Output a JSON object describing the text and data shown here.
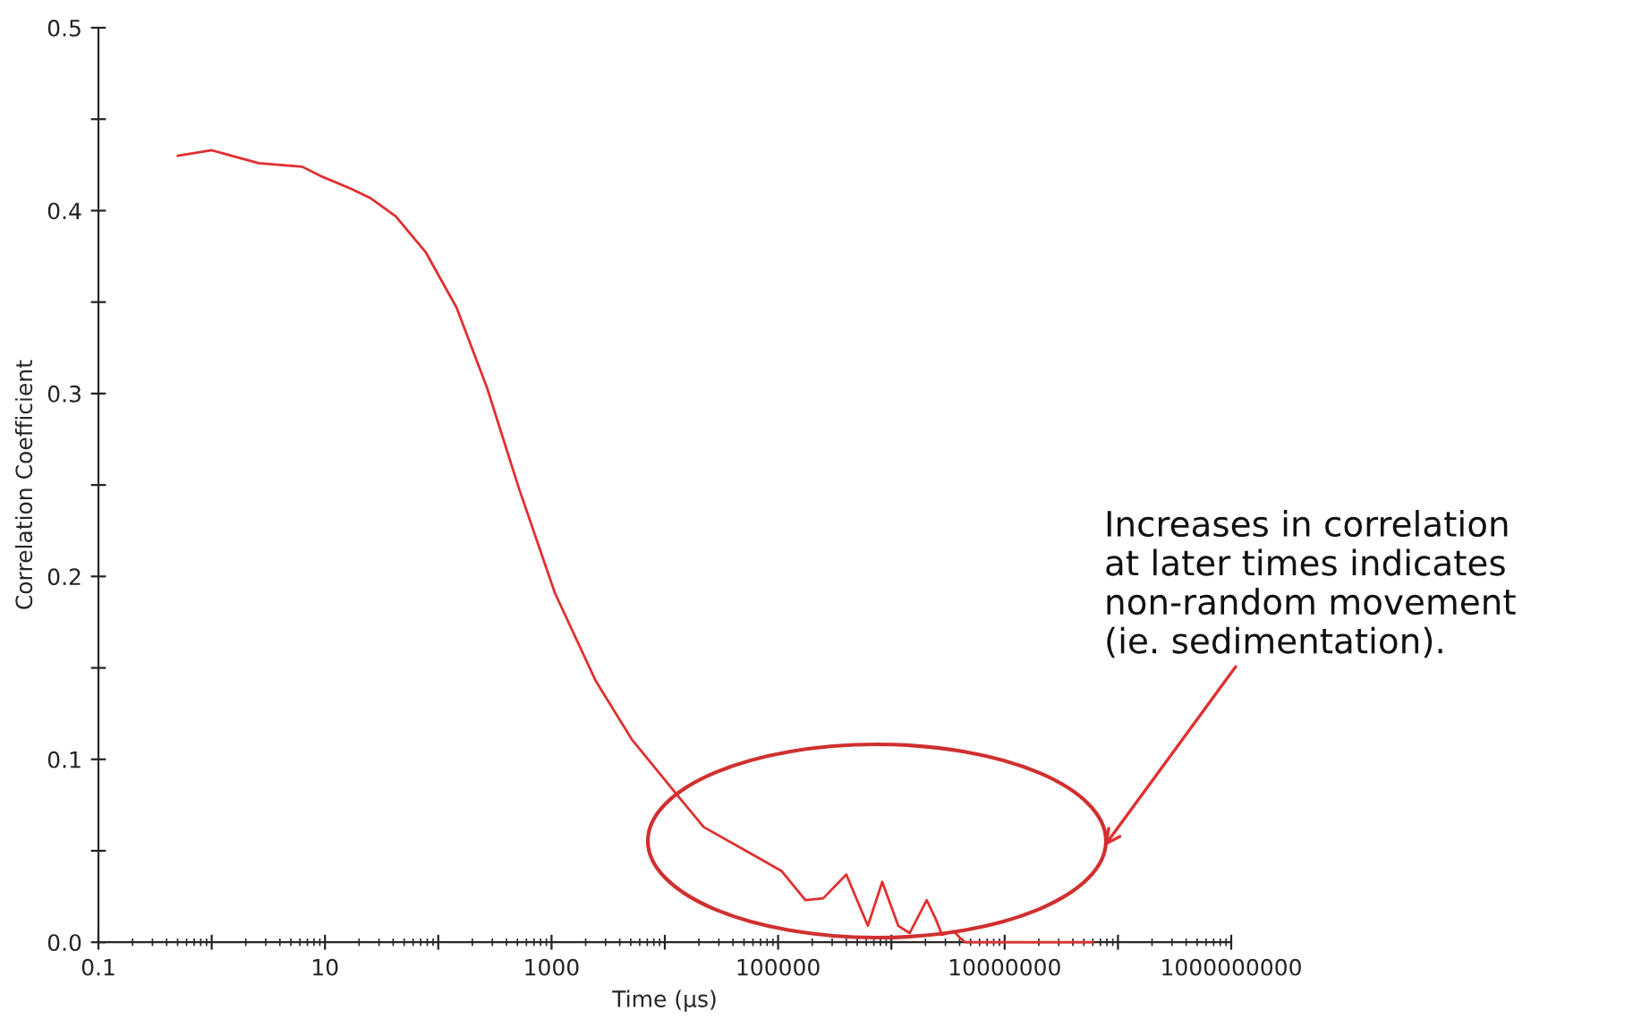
{
  "chart_data": {
    "type": "line",
    "xlabel": "Time (µs)",
    "ylabel": "Correlation Coefficient",
    "log": "x",
    "grid": false,
    "marker": "none",
    "line_style": "solid",
    "xlim": [
      0.1,
      1000000000
    ],
    "ylim": [
      0,
      0.5
    ],
    "xticks": [
      {
        "value": 0.1,
        "label": "0.1"
      },
      {
        "value": 1,
        "label": null
      },
      {
        "value": 10,
        "label": "10"
      },
      {
        "value": 100,
        "label": null
      },
      {
        "value": 1000,
        "label": "1000"
      },
      {
        "value": 10000,
        "label": null
      },
      {
        "value": 100000,
        "label": "100000"
      },
      {
        "value": 1000000,
        "label": null
      },
      {
        "value": 10000000,
        "label": "10000000"
      },
      {
        "value": 100000000,
        "label": null
      },
      {
        "value": 1000000000,
        "label": "1000000000"
      }
    ],
    "yticks": [
      {
        "value": 0,
        "label": "0.0"
      },
      {
        "value": 0.05,
        "label": null
      },
      {
        "value": 0.1,
        "label": "0.1"
      },
      {
        "value": 0.15,
        "label": null
      },
      {
        "value": 0.2,
        "label": "0.2"
      },
      {
        "value": 0.25,
        "label": null
      },
      {
        "value": 0.3,
        "label": "0.3"
      },
      {
        "value": 0.35,
        "label": null
      },
      {
        "value": 0.4,
        "label": "0.4"
      },
      {
        "value": 0.45,
        "label": null
      },
      {
        "value": 0.5,
        "label": "0.5"
      }
    ],
    "series": [
      {
        "color": "#e03030",
        "x": [
          0.5,
          1.0,
          2.6,
          6.3,
          9.1,
          17,
          25,
          42,
          78,
          145,
          270,
          510,
          1070,
          2450,
          5100,
          12300,
          22000,
          52000,
          107000,
          174000,
          250000,
          400000,
          620000,
          830000,
          1150000,
          1450000,
          2050000,
          2450000,
          2800000,
          3550000,
          4100000,
          4500000,
          10000000,
          30000000,
          60000000
        ],
        "values": [
          0.43,
          0.433,
          0.426,
          0.424,
          0.419,
          0.412,
          0.407,
          0.397,
          0.377,
          0.347,
          0.303,
          0.249,
          0.191,
          0.143,
          0.111,
          0.082,
          0.063,
          0.05,
          0.039,
          0.023,
          0.024,
          0.037,
          0.009,
          0.033,
          0.009,
          0.005,
          0.023,
          0.013,
          0.004,
          0.006,
          0.002,
          0.0,
          0.0,
          0.0,
          0.0
        ]
      }
    ],
    "annotations": [
      "Increases in correlation\nat later times indicates\nnon-random movement\n(ie. sedimentation)."
    ]
  }
}
